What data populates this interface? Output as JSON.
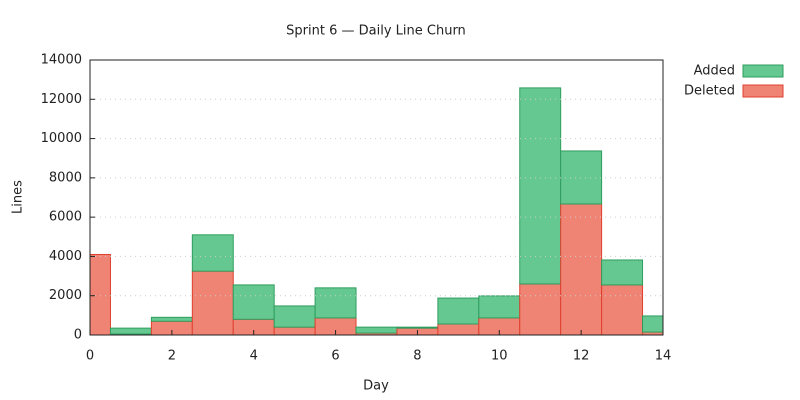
{
  "chart_data": {
    "type": "bar",
    "stacked": true,
    "title": "Sprint 6 — Daily Line Churn",
    "xlabel": "Day",
    "ylabel": "Lines",
    "x": [
      0,
      1,
      2,
      3,
      4,
      5,
      6,
      7,
      8,
      9,
      10,
      11,
      12,
      13,
      14
    ],
    "series": [
      {
        "name": "Deleted",
        "color": "#f08474",
        "edge": "#e0402e",
        "values": [
          4100,
          50,
          700,
          3250,
          800,
          400,
          870,
          100,
          350,
          560,
          870,
          2600,
          6670,
          2550,
          150
        ]
      },
      {
        "name": "Added",
        "color": "#66c891",
        "edge": "#2e9e5e",
        "values": [
          0,
          300,
          200,
          1850,
          1750,
          1080,
          1530,
          300,
          50,
          1320,
          1120,
          9980,
          2700,
          1270,
          820
        ]
      }
    ],
    "xlim": [
      0,
      14
    ],
    "xticks": [
      0,
      2,
      4,
      6,
      8,
      10,
      12,
      14
    ],
    "ylim": [
      0,
      14000
    ],
    "yticks": [
      0,
      2000,
      4000,
      6000,
      8000,
      10000,
      12000,
      14000
    ],
    "grid": true,
    "legend": "top-right"
  }
}
